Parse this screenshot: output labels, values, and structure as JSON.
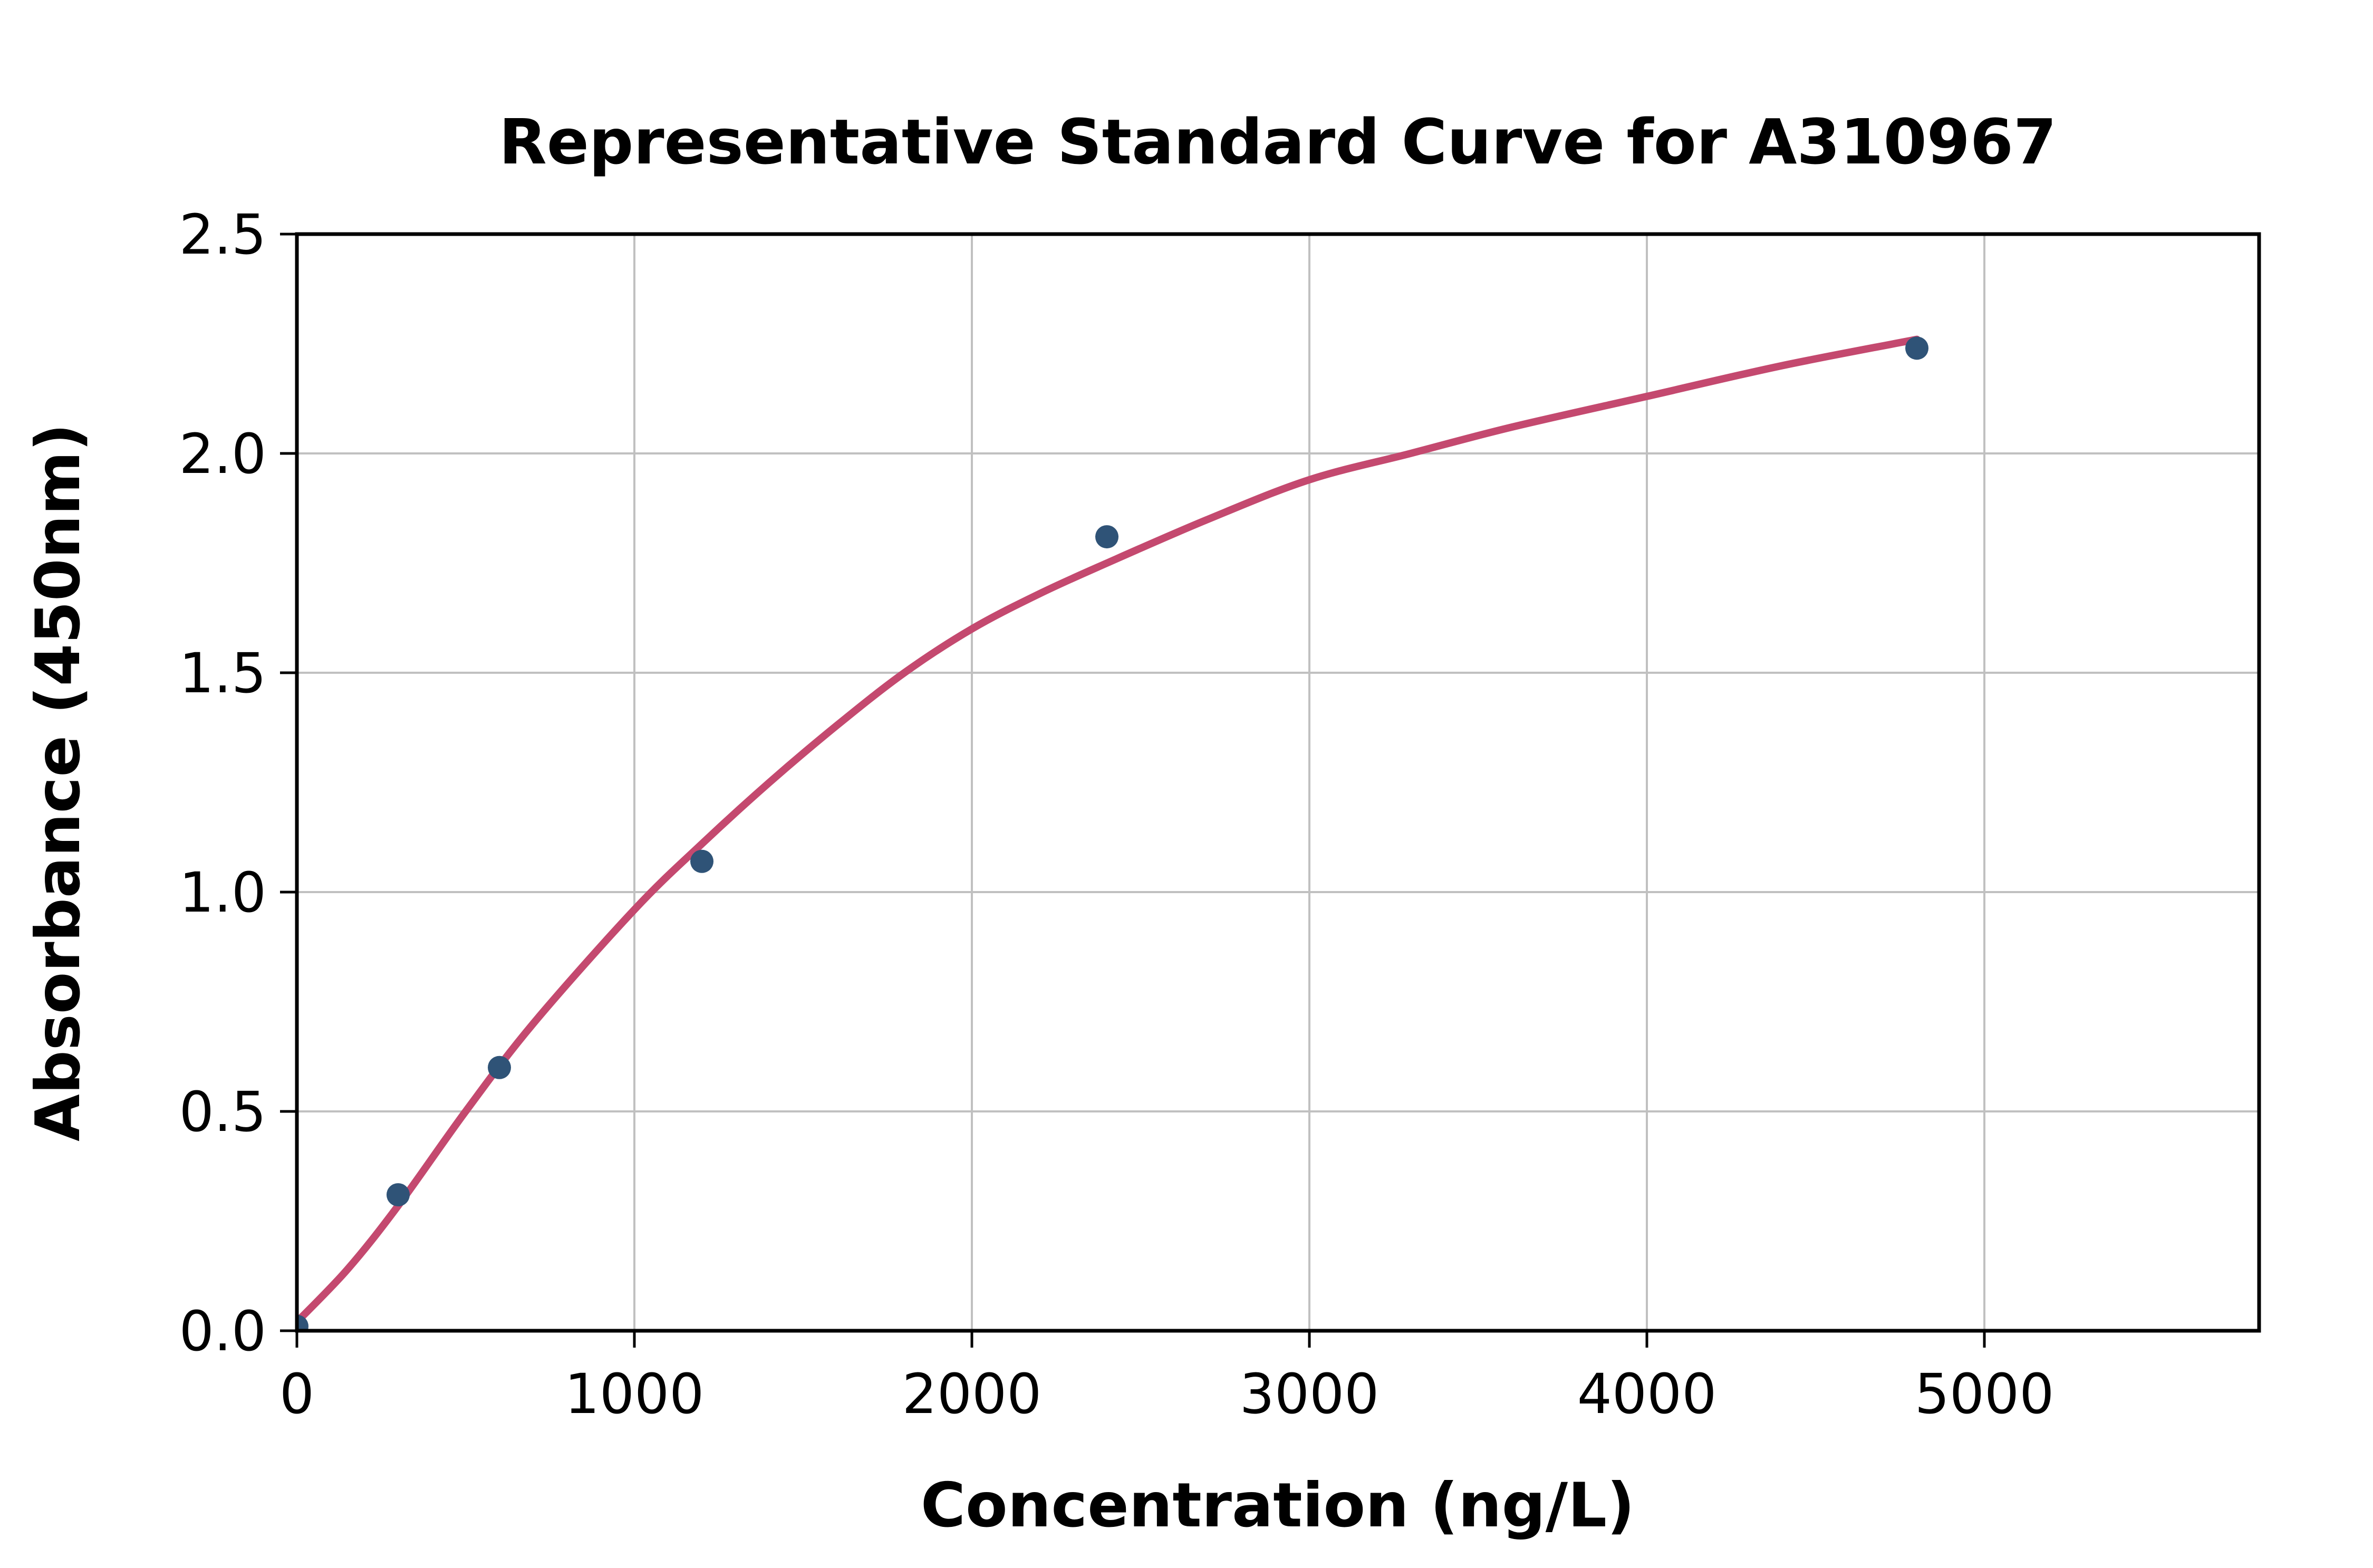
{
  "chart_data": {
    "type": "scatter",
    "title": "Representative Standard Curve for A310967",
    "xlabel": "Concentration (ng/L)",
    "ylabel": "Absorbance (450nm)",
    "xlim": [
      0,
      5814
    ],
    "ylim": [
      0,
      2.5
    ],
    "xticks": [
      0,
      1000,
      2000,
      3000,
      4000,
      5000
    ],
    "xticklabels": [
      "0",
      "1000",
      "2000",
      "3000",
      "4000",
      "5000"
    ],
    "yticks": [
      0.0,
      0.5,
      1.0,
      1.5,
      2.0,
      2.5
    ],
    "yticklabels": [
      "0.0",
      "0.5",
      "1.0",
      "1.5",
      "2.0",
      "2.5"
    ],
    "grid": true,
    "legend": "none",
    "series": [
      {
        "name": "standard-points",
        "type": "scatter",
        "color": "#2f5377",
        "x": [
          0,
          300,
          600,
          1200,
          2400,
          4800
        ],
        "y": [
          0.01,
          0.31,
          0.6,
          1.07,
          1.81,
          2.24
        ]
      },
      {
        "name": "fitted-curve",
        "type": "line",
        "color": "#c4496f",
        "points": [
          [
            0,
            0.02
          ],
          [
            150,
            0.14
          ],
          [
            300,
            0.285
          ],
          [
            500,
            0.5
          ],
          [
            700,
            0.7
          ],
          [
            1000,
            0.96
          ],
          [
            1200,
            1.11
          ],
          [
            1400,
            1.25
          ],
          [
            1600,
            1.38
          ],
          [
            1800,
            1.5
          ],
          [
            2000,
            1.6
          ],
          [
            2200,
            1.68
          ],
          [
            2400,
            1.75
          ],
          [
            2700,
            1.85
          ],
          [
            3000,
            1.94
          ],
          [
            3300,
            2.0
          ],
          [
            3600,
            2.06
          ],
          [
            4000,
            2.13
          ],
          [
            4400,
            2.2
          ],
          [
            4800,
            2.26
          ]
        ]
      }
    ]
  },
  "colors": {
    "background": "#ffffff",
    "spine": "#000000",
    "grid": "#c0c0c0",
    "tick": "#000000",
    "scatter": "#2f5377",
    "curve": "#c4496f"
  }
}
